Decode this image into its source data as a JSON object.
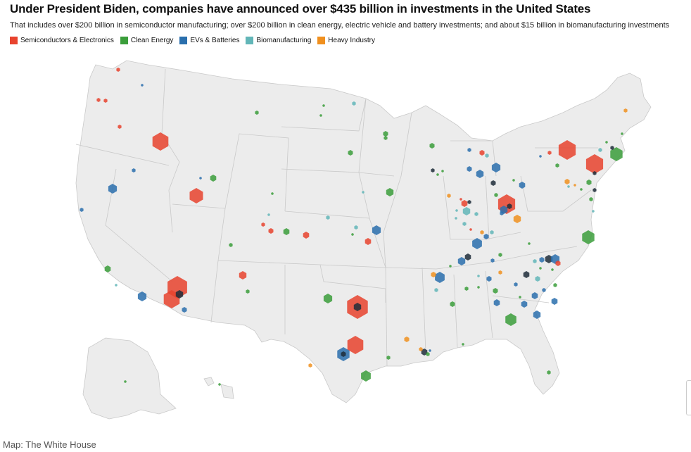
{
  "title": "Under President Biden, companies have announced over $435 billion in investments in the United States",
  "subtitle": "That includes over $200 billion in semiconductor manufacturing; over $200 billion in clean energy, electric vehicle and battery investments; and about $15 billion in biomanufacturing investments",
  "legend": [
    {
      "label": "Semiconductors & Electronics",
      "color": "#e8432e"
    },
    {
      "label": "Clean Energy",
      "color": "#3b9e3b"
    },
    {
      "label": "EVs & Batteries",
      "color": "#2a6fad"
    },
    {
      "label": "Biomanufacturing",
      "color": "#62b6b8"
    },
    {
      "label": "Heavy Industry",
      "color": "#f0901f"
    }
  ],
  "credit": "Map: The White House",
  "colors": {
    "land": "#ececec",
    "border": "#c9c9c9",
    "background": "#ffffff"
  }
}
